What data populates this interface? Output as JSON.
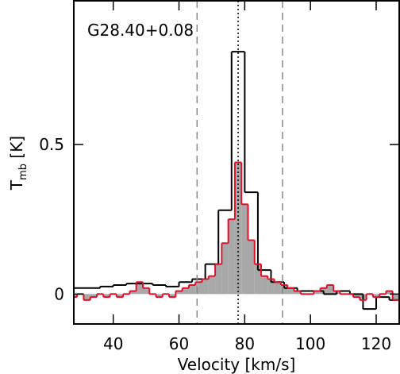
{
  "chart_data": {
    "type": "step",
    "annotation": "G28.40+0.08",
    "xlabel": "Velocity [km/s]",
    "ylabel": {
      "main": "T",
      "sub": "mb",
      "rest": " [K]"
    },
    "xlim": [
      28,
      127
    ],
    "ylim": [
      -0.1,
      0.98
    ],
    "xticks": [
      40,
      60,
      80,
      100,
      120
    ],
    "yticks": [
      0,
      0.5
    ],
    "series": [
      {
        "name": "black",
        "color": "#000000",
        "fill": null,
        "width": 4,
        "x": [
          30,
          34,
          38,
          42,
          46,
          50,
          54,
          58,
          62,
          66,
          70,
          74,
          78,
          82,
          86,
          90,
          94,
          98,
          102,
          106,
          110,
          114,
          118,
          122,
          126
        ],
        "values": [
          0.02,
          0.02,
          0.025,
          0.03,
          0.035,
          0.035,
          0.03,
          0.025,
          0.04,
          0.05,
          0.1,
          0.28,
          0.81,
          0.34,
          0.08,
          0.04,
          0.02,
          0.01,
          0.01,
          0.0,
          0.01,
          0.0,
          -0.05,
          -0.01,
          -0.02
        ]
      },
      {
        "name": "red",
        "color": "#e0102a",
        "fill": "#a8a8a8",
        "width": 2,
        "x": [
          28,
          30,
          32,
          34,
          36,
          38,
          40,
          42,
          44,
          46,
          48,
          50,
          52,
          54,
          56,
          58,
          60,
          62,
          64,
          66,
          68,
          70,
          72,
          74,
          76,
          78,
          80,
          82,
          84,
          86,
          88,
          90,
          92,
          94,
          96,
          98,
          100,
          102,
          104,
          106,
          108,
          110,
          112,
          114,
          116,
          118,
          120,
          122,
          124,
          126
        ],
        "values": [
          -0.01,
          0.0,
          -0.02,
          -0.01,
          0.0,
          -0.01,
          0.0,
          -0.01,
          0.0,
          0.01,
          0.04,
          0.02,
          0.0,
          -0.01,
          0.0,
          -0.01,
          0.01,
          0.02,
          0.03,
          0.04,
          0.05,
          0.06,
          0.1,
          0.17,
          0.25,
          0.44,
          0.3,
          0.18,
          0.1,
          0.06,
          0.05,
          0.04,
          0.03,
          0.02,
          0.01,
          0.0,
          0.0,
          0.01,
          0.02,
          0.03,
          0.01,
          0.0,
          0.0,
          -0.01,
          -0.02,
          0.0,
          -0.01,
          0.0,
          0.01,
          -0.02
        ]
      }
    ],
    "vlines": [
      {
        "x": 65.5,
        "style": "dashed",
        "color": "#888888"
      },
      {
        "x": 78,
        "style": "dotted",
        "color": "#000000"
      },
      {
        "x": 91.5,
        "style": "dashed",
        "color": "#888888"
      }
    ]
  }
}
